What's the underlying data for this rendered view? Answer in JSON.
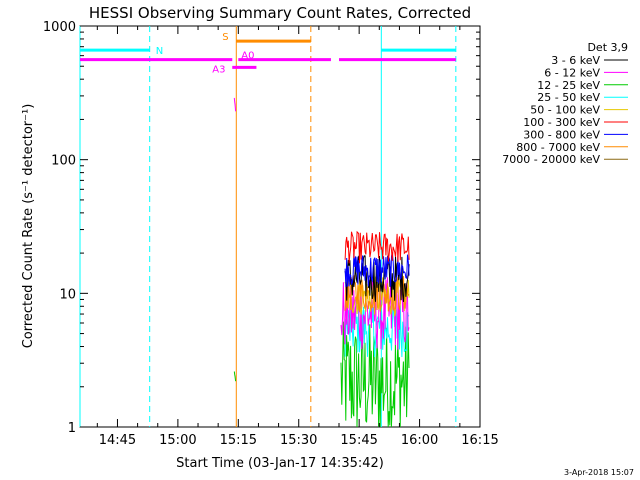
{
  "chart_data": {
    "type": "line",
    "title": "HESSI Observing Summary Count Rates, Corrected",
    "xlabel": "Start Time (03-Jan-17 14:35:42)",
    "ylabel": "Corrected Count Rate (s⁻¹ detector⁻¹)",
    "ylim": [
      1,
      1000
    ],
    "yscale": "log",
    "yticks": [
      1,
      10,
      100,
      1000
    ],
    "ytick_labels": [
      "1",
      "10",
      "100",
      "1000"
    ],
    "xlim": [
      "14:35:42",
      "16:15:00"
    ],
    "xticks": [
      "14:45",
      "15:00",
      "15:15",
      "15:30",
      "15:45",
      "16:00",
      "16:15"
    ],
    "timestamp": "3-Apr-2018 15:07",
    "legend": {
      "placement": "right",
      "title": "Det 3,9",
      "entries": [
        {
          "label": "3 - 6 keV",
          "color": "#000000"
        },
        {
          "label": "6 - 12 keV",
          "color": "#ff00ff"
        },
        {
          "label": "12 - 25 keV",
          "color": "#00cc00"
        },
        {
          "label": "25 - 50 keV",
          "color": "#00ffff"
        },
        {
          "label": "50 - 100 keV",
          "color": "#e6c800"
        },
        {
          "label": "100 - 300 keV",
          "color": "#ff0000"
        },
        {
          "label": "300 - 800 keV",
          "color": "#0000ff"
        },
        {
          "label": "800 - 7000 keV",
          "color": "#ff8c00"
        },
        {
          "label": "7000 - 20000 keV",
          "color": "#8b6914"
        }
      ]
    },
    "series": [
      {
        "name": "3 - 6 keV",
        "color": "#000000",
        "t_start": "15:41:30",
        "t_end": "15:57:30",
        "center": 13.0,
        "spread": 0.18
      },
      {
        "name": "6 - 12 keV",
        "color": "#ff00ff",
        "t_start": "15:40:30",
        "t_end": "15:57:30",
        "center": 7.0,
        "spread": 0.28
      },
      {
        "name": "12 - 25 keV",
        "color": "#00cc00",
        "t_start": "15:40:30",
        "t_end": "15:57:30",
        "center": 2.2,
        "spread": 0.45
      },
      {
        "name": "25 - 50 keV",
        "color": "#00ffff",
        "t_start": "15:41:30",
        "t_end": "15:57:30",
        "center": 5.5,
        "spread": 0.22
      },
      {
        "name": "50 - 100 keV",
        "color": "#e6c800",
        "t_start": "15:41:30",
        "t_end": "15:57:30",
        "center": 9.5,
        "spread": 0.15
      },
      {
        "name": "100 - 300 keV",
        "color": "#ff0000",
        "t_start": "15:41:30",
        "t_end": "15:57:30",
        "center": 22.0,
        "spread": 0.12
      },
      {
        "name": "300 - 800 keV",
        "color": "#0000ff",
        "t_start": "15:41:30",
        "t_end": "15:57:30",
        "center": 15.0,
        "spread": 0.13
      },
      {
        "name": "800 - 7000 keV",
        "color": "#ff8c00",
        "t_start": "15:41:30",
        "t_end": "15:57:30",
        "center": 10.0,
        "spread": 0.14
      }
    ],
    "fragments": [
      {
        "color": "#ff00ff",
        "t_start": "15:14:00",
        "t_end": "15:14:20",
        "y_from": 290,
        "y_to": 230
      },
      {
        "color": "#00cc00",
        "t_start": "15:14:00",
        "t_end": "15:14:20",
        "y_from": 2.6,
        "y_to": 2.2
      }
    ],
    "vlines": [
      {
        "time": "14:35:42",
        "color": "#00ffff",
        "style": "solid"
      },
      {
        "time": "14:53:00",
        "color": "#00ffff",
        "style": "dashed"
      },
      {
        "time": "15:14:30",
        "color": "#ff8c00",
        "style": "solid"
      },
      {
        "time": "15:33:00",
        "color": "#ff8c00",
        "style": "dashed"
      },
      {
        "time": "15:50:30",
        "color": "#00ffff",
        "style": "solid"
      },
      {
        "time": "16:09:00",
        "color": "#00ffff",
        "style": "dashed"
      }
    ],
    "bars": [
      {
        "label": "N",
        "color": "#00ffff",
        "y": 660,
        "segments": [
          [
            "14:35:42",
            "14:53:00"
          ],
          [
            "15:50:30",
            "16:09:00"
          ]
        ]
      },
      {
        "label": "S",
        "color": "#ff8c00",
        "y": 770,
        "segments": [
          [
            "15:14:30",
            "15:33:00"
          ]
        ]
      },
      {
        "label": "",
        "color": "#ff00ff",
        "y": 560,
        "segments": [
          [
            "14:35:42",
            "15:13:30"
          ],
          [
            "15:15:00",
            "15:38:00"
          ],
          [
            "15:40:00",
            "16:09:00"
          ]
        ]
      },
      {
        "label": "A0",
        "color": "#ff00ff",
        "y": 530,
        "segments": []
      },
      {
        "label": "A3",
        "color": "#ff00ff",
        "y": 490,
        "segments": [
          [
            "15:13:30",
            "15:19:30"
          ]
        ]
      }
    ]
  }
}
